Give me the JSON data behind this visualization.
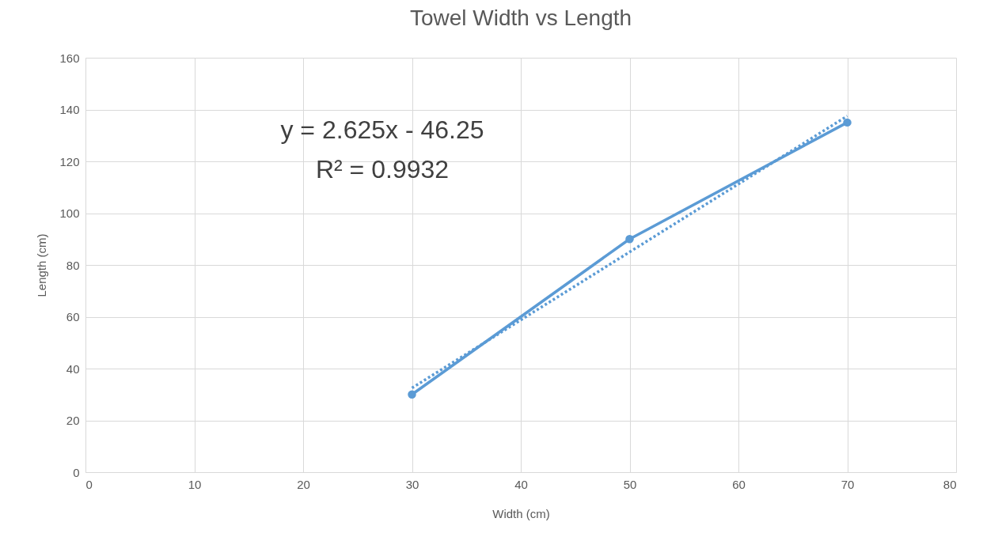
{
  "chart_data": {
    "type": "line",
    "title": "Towel Width vs Length",
    "xlabel": "Width (cm)",
    "ylabel": "Length (cm)",
    "xlim": [
      0,
      80
    ],
    "xticks": [
      0,
      10,
      20,
      30,
      40,
      50,
      60,
      70,
      80
    ],
    "ylim": [
      0,
      160
    ],
    "yticks": [
      0,
      20,
      40,
      60,
      80,
      100,
      120,
      140,
      160
    ],
    "grid": true,
    "annotations": [
      "y = 2.625x - 46.25",
      "R² = 0.9932"
    ],
    "series": [
      {
        "color": "#5b9bd5",
        "x": [
          30,
          50,
          70
        ],
        "values": [
          30,
          90,
          135
        ],
        "marker": "circle",
        "line_style": "solid"
      },
      {
        "color": "#5b9bd5",
        "x": [
          30,
          70
        ],
        "values": [
          32.5,
          137.5
        ],
        "marker": "none",
        "line_style": "dotted"
      }
    ]
  }
}
